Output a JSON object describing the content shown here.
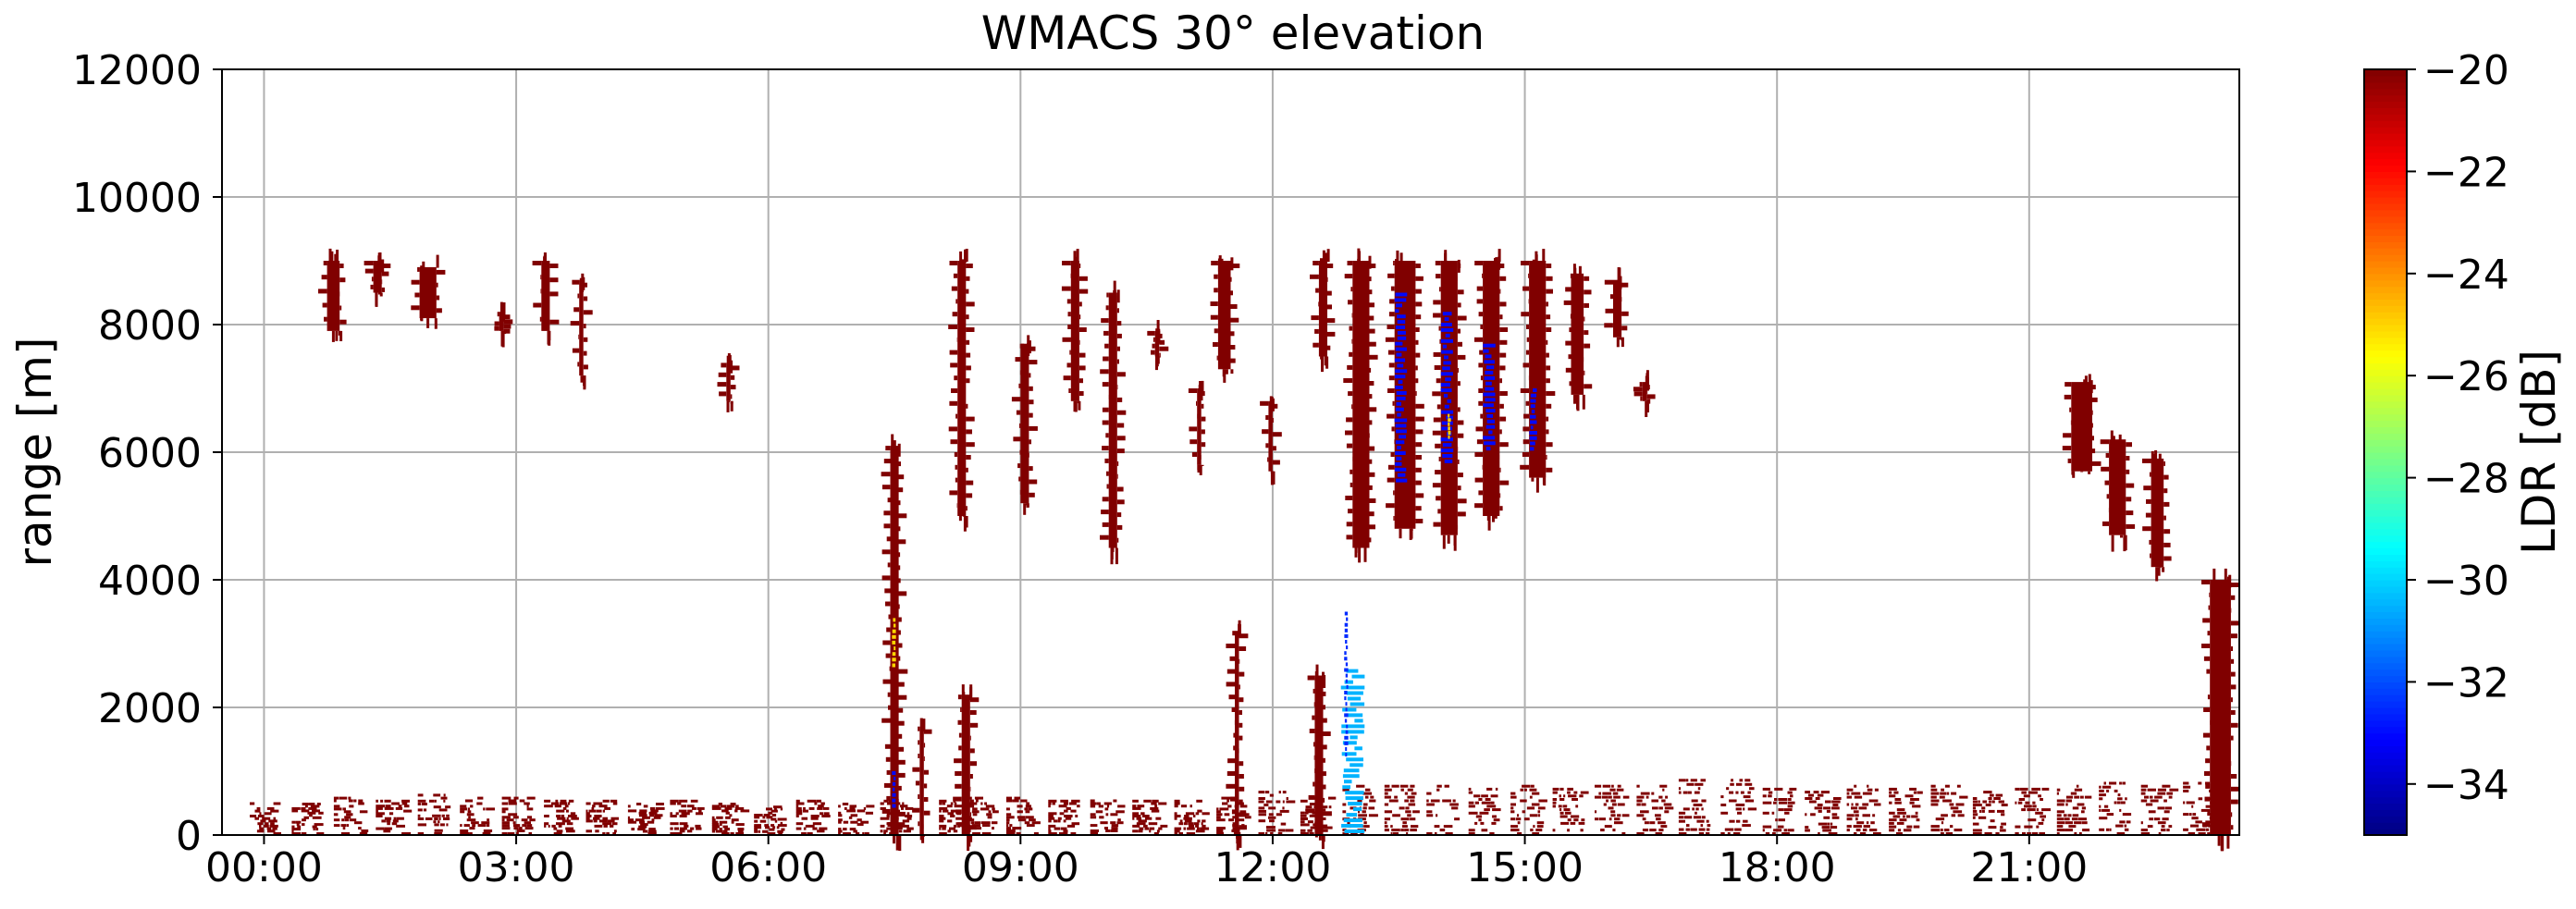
{
  "chart_data": {
    "type": "heatmap",
    "title": "WMACS 30° elevation",
    "xlabel": "",
    "ylabel": "range [m]",
    "x_unit": "hours",
    "xlim": [
      -0.5,
      23.5
    ],
    "ylim": [
      0,
      12000
    ],
    "x_ticks": [
      {
        "value": 0,
        "label": "00:00"
      },
      {
        "value": 3,
        "label": "03:00"
      },
      {
        "value": 6,
        "label": "06:00"
      },
      {
        "value": 9,
        "label": "09:00"
      },
      {
        "value": 12,
        "label": "12:00"
      },
      {
        "value": 15,
        "label": "15:00"
      },
      {
        "value": 18,
        "label": "18:00"
      },
      {
        "value": 21,
        "label": "21:00"
      }
    ],
    "y_ticks": [
      0,
      2000,
      4000,
      6000,
      8000,
      10000,
      12000
    ],
    "grid": true,
    "colorbar": {
      "label": "LDR [dB]",
      "colormap": "jet",
      "vmin": -35,
      "vmax": -20,
      "ticks": [
        -20,
        -22,
        -24,
        -26,
        -28,
        -30,
        -32,
        -34
      ]
    },
    "colors": {
      "saturated": "#800000",
      "cyan_feature": "#33ddee",
      "blue_feature": "#1f3fff",
      "grid": "#b0b0b0"
    },
    "features": {
      "low_level_bands": [
        {
          "x": 0.0,
          "ytop": 550
        },
        {
          "x": 0.5,
          "ytop": 500
        },
        {
          "x": 1.0,
          "ytop": 600
        },
        {
          "x": 1.5,
          "ytop": 550
        },
        {
          "x": 2.0,
          "ytop": 650
        },
        {
          "x": 2.5,
          "ytop": 600
        },
        {
          "x": 3.0,
          "ytop": 600
        },
        {
          "x": 3.5,
          "ytop": 550
        },
        {
          "x": 4.0,
          "ytop": 550
        },
        {
          "x": 4.5,
          "ytop": 500
        },
        {
          "x": 5.0,
          "ytop": 550
        },
        {
          "x": 5.5,
          "ytop": 500
        },
        {
          "x": 6.0,
          "ytop": 450
        },
        {
          "x": 6.5,
          "ytop": 550
        },
        {
          "x": 7.0,
          "ytop": 500
        },
        {
          "x": 7.5,
          "ytop": 550
        },
        {
          "x": 8.2,
          "ytop": 550
        },
        {
          "x": 8.5,
          "ytop": 600
        },
        {
          "x": 9.0,
          "ytop": 600
        },
        {
          "x": 9.5,
          "ytop": 550
        },
        {
          "x": 10.0,
          "ytop": 600
        },
        {
          "x": 10.5,
          "ytop": 550
        },
        {
          "x": 11.0,
          "ytop": 550
        },
        {
          "x": 11.5,
          "ytop": 600
        },
        {
          "x": 12.0,
          "ytop": 700
        },
        {
          "x": 12.5,
          "ytop": 650
        },
        {
          "x": 13.0,
          "ytop": 800
        },
        {
          "x": 13.5,
          "ytop": 800
        },
        {
          "x": 14.0,
          "ytop": 800
        },
        {
          "x": 14.5,
          "ytop": 750
        },
        {
          "x": 15.0,
          "ytop": 800
        },
        {
          "x": 15.5,
          "ytop": 750
        },
        {
          "x": 16.0,
          "ytop": 800
        },
        {
          "x": 16.5,
          "ytop": 800
        },
        {
          "x": 17.0,
          "ytop": 900
        },
        {
          "x": 17.5,
          "ytop": 900
        },
        {
          "x": 18.0,
          "ytop": 750
        },
        {
          "x": 18.5,
          "ytop": 700
        },
        {
          "x": 19.0,
          "ytop": 800
        },
        {
          "x": 19.5,
          "ytop": 750
        },
        {
          "x": 20.0,
          "ytop": 800
        },
        {
          "x": 20.5,
          "ytop": 700
        },
        {
          "x": 21.0,
          "ytop": 750
        },
        {
          "x": 21.5,
          "ytop": 800
        },
        {
          "x": 22.0,
          "ytop": 850
        },
        {
          "x": 22.5,
          "ytop": 800
        },
        {
          "x": 23.0,
          "ytop": 850
        }
      ],
      "echo_columns": [
        {
          "x0": 0.75,
          "x1": 0.9,
          "y0": 7900,
          "y1": 9000
        },
        {
          "x0": 1.3,
          "x1": 1.4,
          "y0": 8500,
          "y1": 9000
        },
        {
          "x0": 1.85,
          "x1": 2.05,
          "y0": 8100,
          "y1": 8900
        },
        {
          "x0": 2.8,
          "x1": 2.85,
          "y0": 7900,
          "y1": 8200
        },
        {
          "x0": 3.3,
          "x1": 3.4,
          "y0": 7900,
          "y1": 9000
        },
        {
          "x0": 3.75,
          "x1": 3.8,
          "y0": 7200,
          "y1": 8700
        },
        {
          "x0": 5.5,
          "x1": 5.55,
          "y0": 6800,
          "y1": 7400
        },
        {
          "x0": 7.45,
          "x1": 7.55,
          "y0": 0,
          "y1": 6100
        },
        {
          "x0": 7.8,
          "x1": 7.85,
          "y0": 0,
          "y1": 1700
        },
        {
          "x0": 8.25,
          "x1": 8.35,
          "y0": 5000,
          "y1": 9000
        },
        {
          "x0": 8.3,
          "x1": 8.4,
          "y0": 0,
          "y1": 2200
        },
        {
          "x0": 9.0,
          "x1": 9.1,
          "y0": 5200,
          "y1": 7700
        },
        {
          "x0": 9.6,
          "x1": 9.7,
          "y0": 6800,
          "y1": 9000
        },
        {
          "x0": 10.05,
          "x1": 10.15,
          "y0": 4500,
          "y1": 8500
        },
        {
          "x0": 10.6,
          "x1": 10.65,
          "y0": 7500,
          "y1": 7900
        },
        {
          "x0": 11.35,
          "x1": 11.5,
          "y0": 7300,
          "y1": 9000
        },
        {
          "x0": 11.55,
          "x1": 11.6,
          "y0": 0,
          "y1": 3200
        },
        {
          "x0": 11.95,
          "x1": 12.0,
          "y0": 5700,
          "y1": 6800
        },
        {
          "x0": 12.5,
          "x1": 12.6,
          "y0": 0,
          "y1": 2500
        },
        {
          "x0": 12.55,
          "x1": 12.65,
          "y0": 7500,
          "y1": 9000
        },
        {
          "x0": 12.95,
          "x1": 13.15,
          "y0": 4500,
          "y1": 9000
        },
        {
          "x0": 13.45,
          "x1": 13.7,
          "y0": 4800,
          "y1": 9000
        },
        {
          "x0": 14.0,
          "x1": 14.2,
          "y0": 4700,
          "y1": 9000
        },
        {
          "x0": 14.5,
          "x1": 14.7,
          "y0": 5000,
          "y1": 9000
        },
        {
          "x0": 15.05,
          "x1": 15.25,
          "y0": 5600,
          "y1": 9000
        },
        {
          "x0": 15.55,
          "x1": 15.7,
          "y0": 6900,
          "y1": 8800
        },
        {
          "x0": 16.05,
          "x1": 16.15,
          "y0": 7800,
          "y1": 8700
        },
        {
          "x0": 16.4,
          "x1": 16.45,
          "y0": 6800,
          "y1": 7100
        },
        {
          "x0": 21.5,
          "x1": 21.75,
          "y0": 5700,
          "y1": 7100
        },
        {
          "x0": 21.95,
          "x1": 22.15,
          "y0": 4700,
          "y1": 6200
        },
        {
          "x0": 22.45,
          "x1": 22.6,
          "y0": 4200,
          "y1": 5900
        },
        {
          "x0": 23.15,
          "x1": 23.4,
          "y0": 0,
          "y1": 4000
        },
        {
          "x0": 11.1,
          "x1": 11.15,
          "y0": 5800,
          "y1": 7000
        }
      ],
      "ldr_features": [
        {
          "x0": 12.8,
          "x1": 13.1,
          "y0": 0,
          "y1": 2600,
          "ldr": -30.5
        },
        {
          "x0": 12.85,
          "x1": 12.9,
          "y0": 1200,
          "y1": 3500,
          "ldr": -32.5
        },
        {
          "x0": 13.45,
          "x1": 13.6,
          "y0": 5500,
          "y1": 8500,
          "ldr": -33
        },
        {
          "x0": 14.0,
          "x1": 14.15,
          "y0": 5800,
          "y1": 8200,
          "ldr": -33
        },
        {
          "x0": 14.5,
          "x1": 14.65,
          "y0": 6000,
          "y1": 7700,
          "ldr": -33
        },
        {
          "x0": 15.05,
          "x1": 15.15,
          "y0": 6000,
          "y1": 7000,
          "ldr": -33
        },
        {
          "x0": 14.08,
          "x1": 14.12,
          "y0": 6200,
          "y1": 6600,
          "ldr": -25
        },
        {
          "x0": 7.47,
          "x1": 7.52,
          "y0": 2600,
          "y1": 3400,
          "ldr": -25
        },
        {
          "x0": 7.47,
          "x1": 7.52,
          "y0": 400,
          "y1": 1000,
          "ldr": -33
        }
      ]
    }
  }
}
